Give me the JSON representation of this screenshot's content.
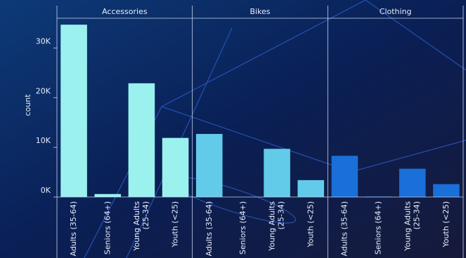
{
  "chart_data": {
    "type": "bar",
    "y_label": "count",
    "categories": [
      "Adults (35-64)",
      "Seniors (64+)",
      "Young Adults (25-34)",
      "Youth (<25)"
    ],
    "facets": [
      {
        "name": "Accessories",
        "color": "#9af1ee",
        "values": [
          34700,
          600,
          22900,
          11900
        ]
      },
      {
        "name": "Bikes",
        "color": "#62cbea",
        "values": [
          12700,
          0,
          9700,
          3400
        ]
      },
      {
        "name": "Clothing",
        "color": "#1a6fd8",
        "values": [
          8300,
          100,
          5700,
          2600
        ]
      }
    ],
    "ylim": [
      0,
      36000
    ],
    "yticks": [
      {
        "value": 0,
        "label": "0K"
      },
      {
        "value": 10000,
        "label": "10K"
      },
      {
        "value": 20000,
        "label": "20K"
      },
      {
        "value": 30000,
        "label": "30K"
      }
    ]
  }
}
